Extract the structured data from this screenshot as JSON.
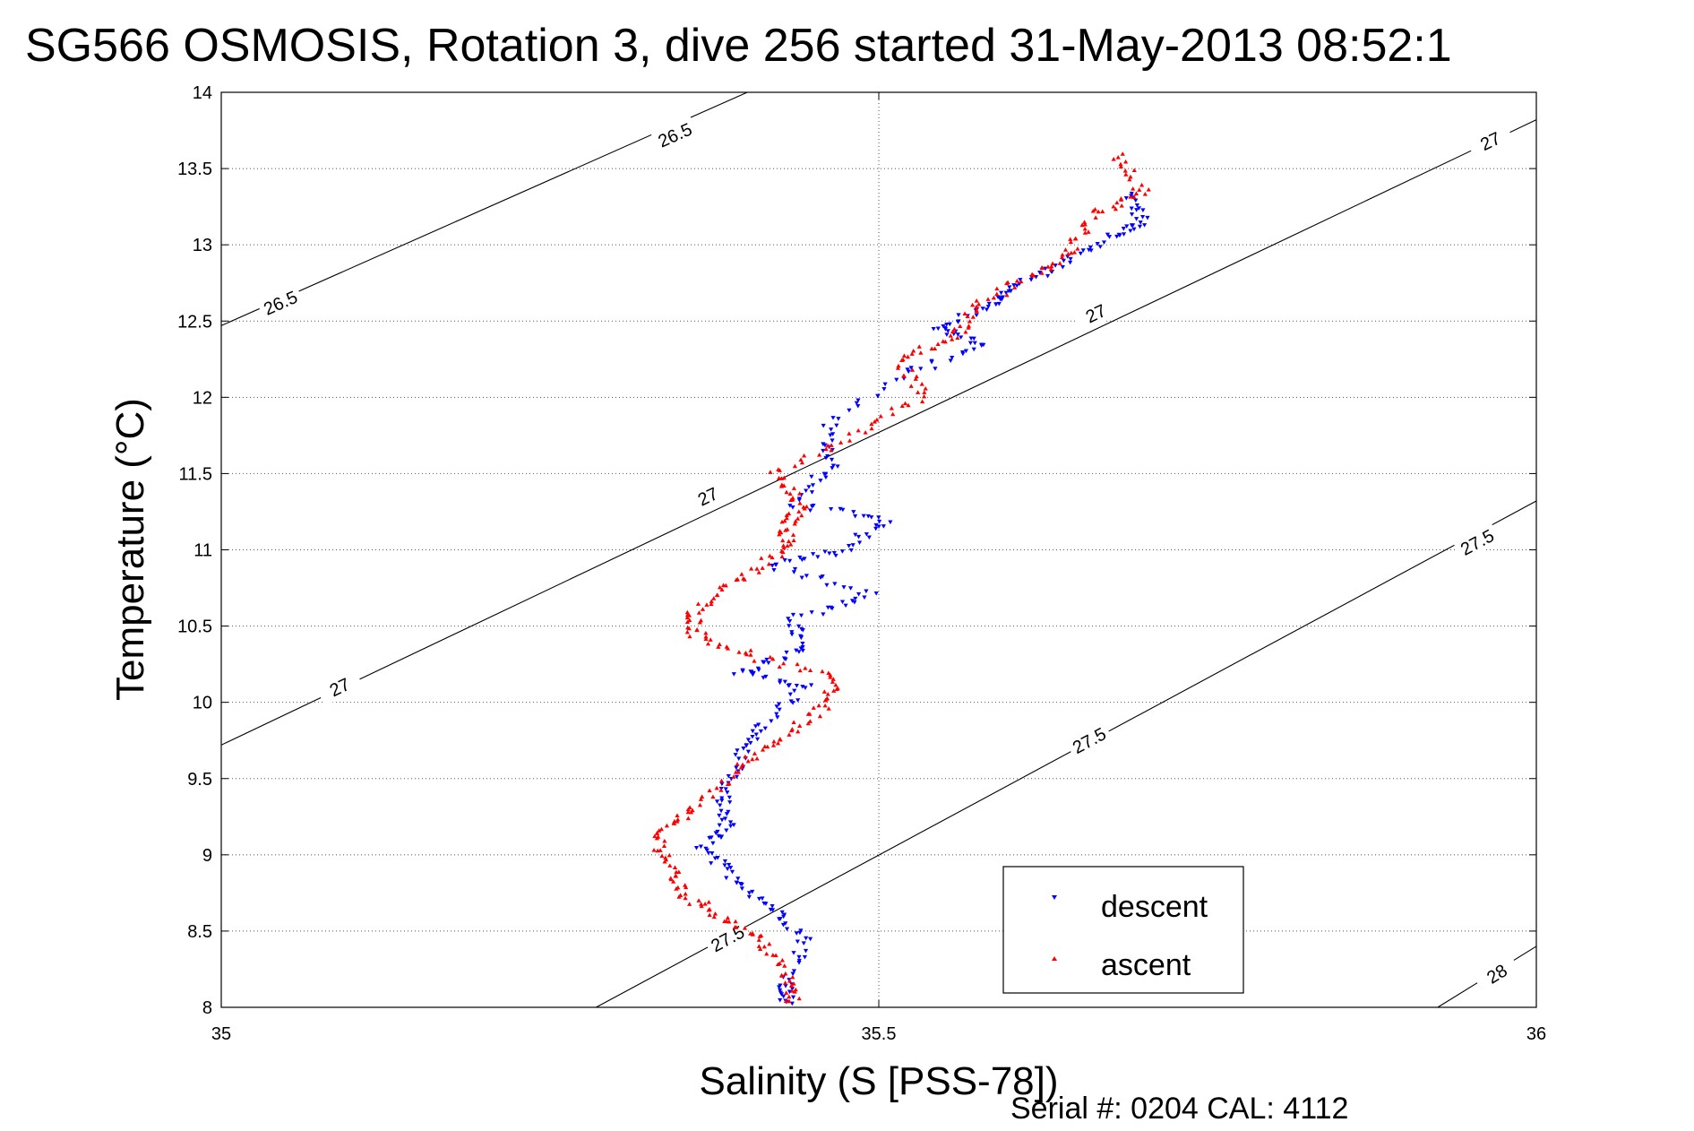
{
  "chart_data": {
    "type": "scatter",
    "title": "SG566 OSMOSIS, Rotation 3, dive 256 started 31-May-2013 08:52:1",
    "xlabel": "Salinity (S [PSS-78])",
    "ylabel": "Temperature (°C)",
    "footnote": "Serial #: 0204  CAL: 4112",
    "xlim": [
      35,
      36
    ],
    "ylim": [
      8,
      14
    ],
    "x_ticks": [
      "35",
      "35.5",
      "36"
    ],
    "y_ticks": [
      "8",
      "8.5",
      "9",
      "9.5",
      "10",
      "10.5",
      "11",
      "11.5",
      "12",
      "12.5",
      "13",
      "13.5",
      "14"
    ],
    "grid": true,
    "legend": {
      "placement": "bottom-right",
      "entries": [
        "descent",
        "ascent"
      ]
    },
    "colors": {
      "descent": "#0000ff",
      "ascent": "#ff0000",
      "contour": "#000000"
    },
    "density_contours": [
      {
        "label": "26.5",
        "points": [
          [
            35.0,
            12.47
          ],
          [
            35.4,
            14.0
          ]
        ],
        "label_positions": [
          [
            35.045,
            12.62
          ],
          [
            35.345,
            13.72
          ]
        ]
      },
      {
        "label": "27",
        "points": [
          [
            35.0,
            9.72
          ],
          [
            36.0,
            13.82
          ]
        ],
        "label_positions": [
          [
            35.09,
            10.1
          ],
          [
            35.37,
            11.35
          ],
          [
            35.665,
            12.55
          ],
          [
            35.965,
            13.68
          ]
        ]
      },
      {
        "label": "27.5",
        "points": [
          [
            35.285,
            8.0
          ],
          [
            36.0,
            11.32
          ]
        ],
        "label_positions": [
          [
            35.385,
            8.45
          ],
          [
            35.66,
            9.75
          ],
          [
            35.955,
            11.05
          ]
        ]
      },
      {
        "label": "28",
        "points": [
          [
            35.925,
            8.0
          ],
          [
            36.0,
            8.4
          ]
        ],
        "label_positions": [
          [
            35.97,
            8.22
          ]
        ]
      }
    ],
    "series": [
      {
        "name": "descent",
        "marker": "triangle-down",
        "path": [
          [
            35.69,
            13.33
          ],
          [
            35.7,
            13.15
          ],
          [
            35.675,
            13.05
          ],
          [
            35.635,
            12.85
          ],
          [
            35.6,
            12.7
          ],
          [
            35.585,
            12.6
          ],
          [
            35.545,
            12.45
          ],
          [
            35.58,
            12.35
          ],
          [
            35.52,
            12.15
          ],
          [
            35.46,
            11.8
          ],
          [
            35.465,
            11.55
          ],
          [
            35.435,
            11.3
          ],
          [
            35.505,
            11.2
          ],
          [
            35.475,
            11.0
          ],
          [
            35.42,
            10.9
          ],
          [
            35.495,
            10.7
          ],
          [
            35.435,
            10.55
          ],
          [
            35.44,
            10.35
          ],
          [
            35.395,
            10.2
          ],
          [
            35.445,
            10.1
          ],
          [
            35.41,
            9.85
          ],
          [
            35.395,
            9.65
          ],
          [
            35.38,
            9.4
          ],
          [
            35.385,
            9.2
          ],
          [
            35.365,
            9.05
          ],
          [
            35.39,
            8.85
          ],
          [
            35.42,
            8.65
          ],
          [
            35.445,
            8.45
          ],
          [
            35.43,
            8.15
          ],
          [
            35.43,
            8.02
          ]
        ]
      },
      {
        "name": "ascent",
        "marker": "triangle-up",
        "path": [
          [
            35.68,
            13.6
          ],
          [
            35.7,
            13.35
          ],
          [
            35.665,
            13.2
          ],
          [
            35.645,
            12.95
          ],
          [
            35.615,
            12.8
          ],
          [
            35.575,
            12.6
          ],
          [
            35.56,
            12.4
          ],
          [
            35.515,
            12.25
          ],
          [
            35.535,
            12.0
          ],
          [
            35.48,
            11.75
          ],
          [
            35.42,
            11.5
          ],
          [
            35.44,
            11.3
          ],
          [
            35.43,
            11.15
          ],
          [
            35.43,
            11.0
          ],
          [
            35.39,
            10.8
          ],
          [
            35.36,
            10.6
          ],
          [
            35.36,
            10.45
          ],
          [
            35.405,
            10.3
          ],
          [
            35.47,
            10.15
          ],
          [
            35.455,
            9.95
          ],
          [
            35.42,
            9.75
          ],
          [
            35.39,
            9.55
          ],
          [
            35.36,
            9.3
          ],
          [
            35.33,
            9.15
          ],
          [
            35.34,
            8.95
          ],
          [
            35.35,
            8.75
          ],
          [
            35.38,
            8.6
          ],
          [
            35.41,
            8.45
          ],
          [
            35.43,
            8.2
          ],
          [
            35.435,
            8.02
          ]
        ]
      }
    ]
  }
}
